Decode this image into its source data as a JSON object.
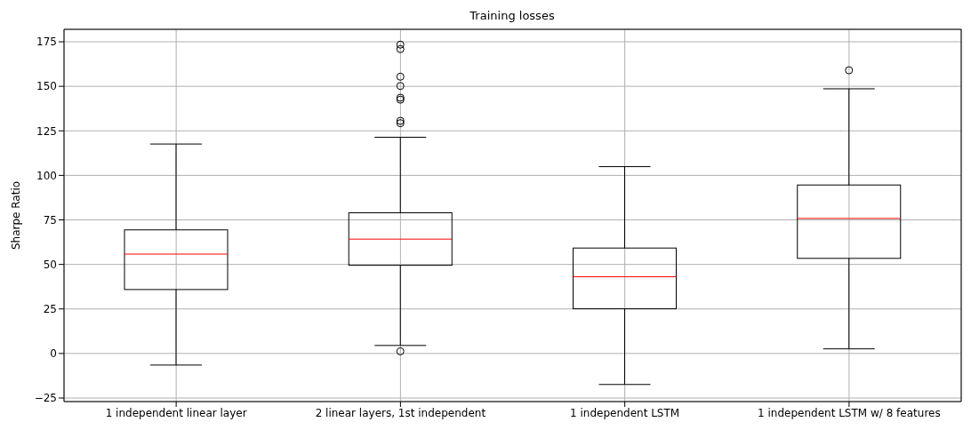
{
  "chart_data": {
    "type": "box",
    "title": "Training losses",
    "ylabel": "Sharpe Ratio",
    "categories": [
      "1 independent linear layer",
      "2 linear layers, 1st independent",
      "1 independent LSTM",
      "1 independent LSTM w/ 8 features"
    ],
    "boxes": [
      {
        "low": -6.5,
        "q1": 35.9,
        "median": 55.8,
        "q3": 69.4,
        "high": 117.6
      },
      {
        "low": 4.5,
        "q1": 49.5,
        "median": 64.2,
        "q3": 79.0,
        "high": 121.4,
        "outliers": [
          1.2,
          129.3,
          130.6,
          142.5,
          143.6,
          150.2,
          155.4,
          170.9,
          173.4
        ]
      },
      {
        "low": -17.4,
        "q1": 25.1,
        "median": 43.1,
        "q3": 59.2,
        "high": 104.9
      },
      {
        "low": 2.6,
        "q1": 53.4,
        "median": 75.8,
        "q3": 94.6,
        "high": 148.6,
        "outliers": [
          159.0
        ]
      }
    ],
    "ylim": [
      -27,
      182
    ],
    "yticks": [
      -25,
      0,
      25,
      50,
      75,
      100,
      125,
      150,
      175
    ],
    "grid": true,
    "marker": "circle"
  }
}
